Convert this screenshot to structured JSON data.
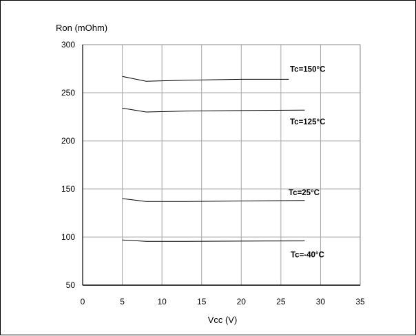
{
  "chart_data": {
    "type": "line",
    "xlabel": "Vcc (V)",
    "ylabel": "Ron (mOhm)",
    "xlim": [
      0,
      35
    ],
    "ylim": [
      50,
      300
    ],
    "xticks": [
      0,
      5,
      10,
      15,
      20,
      25,
      30,
      35
    ],
    "yticks": [
      50,
      100,
      150,
      200,
      250,
      300
    ],
    "grid": true,
    "series": [
      {
        "name": "Tc=150°C",
        "x": [
          5,
          8,
          13,
          20,
          26
        ],
        "y": [
          267,
          262,
          263,
          264,
          264
        ]
      },
      {
        "name": "Tc=125°C",
        "x": [
          5,
          8,
          13,
          20,
          28
        ],
        "y": [
          234,
          230,
          231,
          231.5,
          232
        ]
      },
      {
        "name": "Tc=25°C",
        "x": [
          5,
          8,
          13,
          20,
          28
        ],
        "y": [
          140,
          137,
          137,
          137.5,
          138
        ]
      },
      {
        "name": "Tc=-40°C",
        "x": [
          5,
          8,
          13,
          20,
          28
        ],
        "y": [
          97,
          95.5,
          95.5,
          95.8,
          96
        ]
      }
    ]
  }
}
